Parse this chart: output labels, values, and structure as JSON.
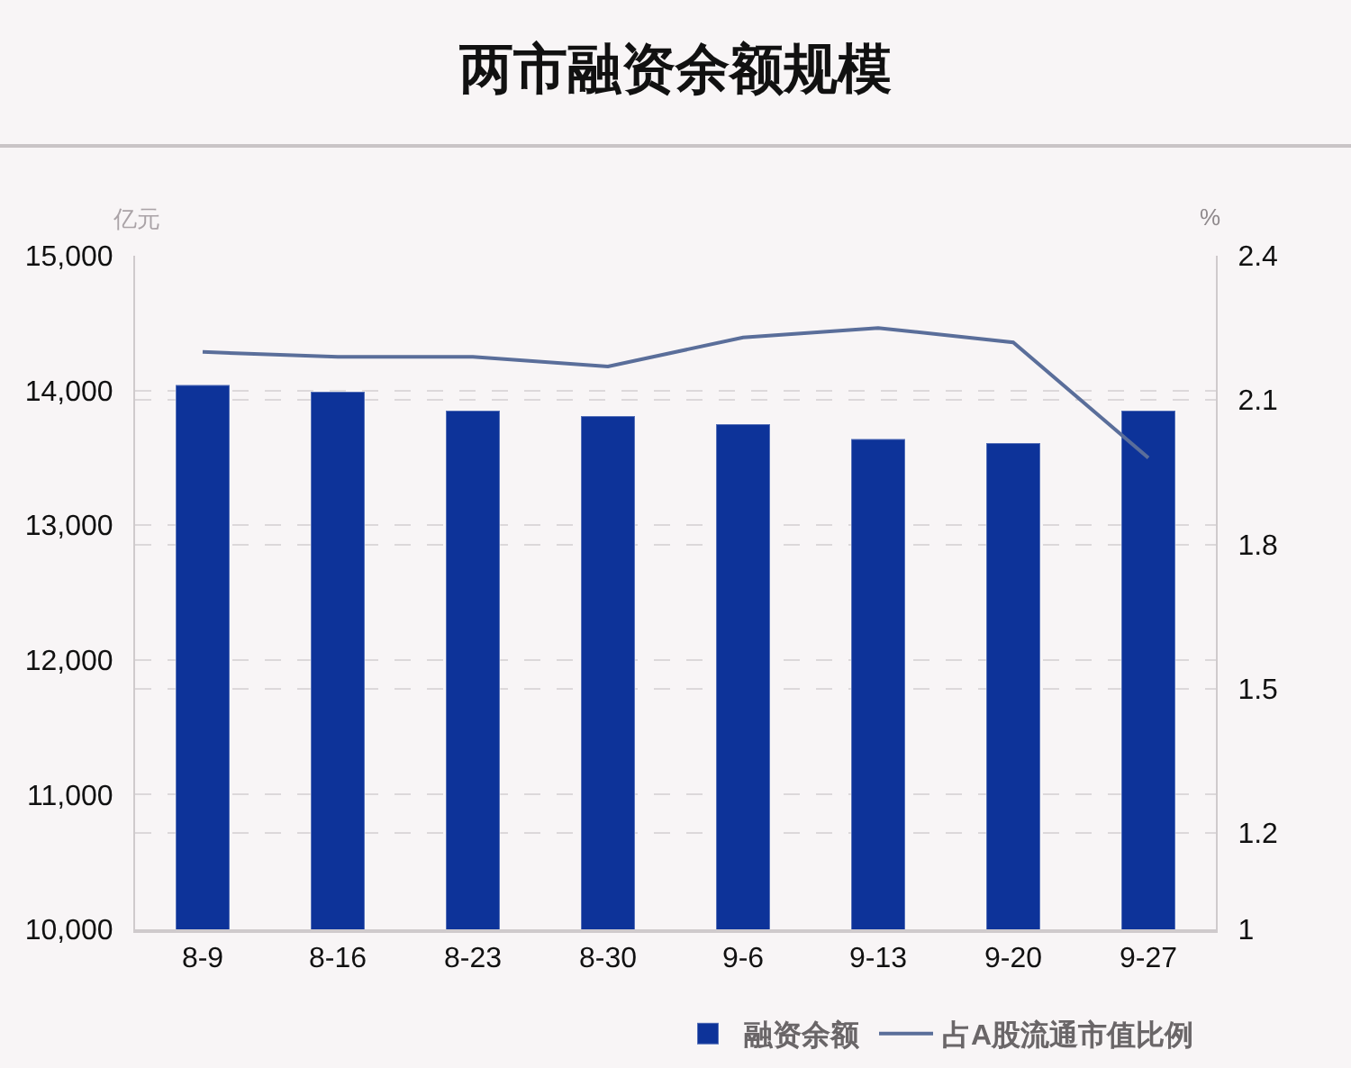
{
  "chart_data": {
    "type": "bar",
    "title": "两市融资余额规模",
    "ylabel": "亿元",
    "y2label": "%",
    "categories": [
      "8-9",
      "8-16",
      "8-23",
      "8-30",
      "9-6",
      "9-13",
      "9-20",
      "9-27"
    ],
    "series": [
      {
        "name": "融资余额",
        "color": "#0d3399",
        "values": [
          14040,
          13990,
          13850,
          13810,
          13750,
          13640,
          13610,
          13850
        ]
      },
      {
        "name": "占A股流通市值比例",
        "type": "line",
        "axis": "y2",
        "color": "#5a6e9a",
        "line_style": "solid",
        "values": [
          2.2,
          2.19,
          2.19,
          2.17,
          2.23,
          2.25,
          2.22,
          1.98
        ]
      }
    ],
    "ylim": [
      10000,
      15000
    ],
    "yticks": [
      {
        "value": 10000,
        "label": "10,000"
      },
      {
        "value": 11000,
        "label": "11,000"
      },
      {
        "value": 12000,
        "label": "12,000"
      },
      {
        "value": 13000,
        "label": "13,000"
      },
      {
        "value": 14000,
        "label": "14,000"
      },
      {
        "value": 15000,
        "label": "15,000"
      }
    ],
    "y2lim": [
      1,
      2.4
    ],
    "y2ticks": [
      1,
      1.2,
      1.5,
      1.8,
      2.1,
      2.4
    ],
    "grid": "y",
    "legend": "bottom right"
  }
}
